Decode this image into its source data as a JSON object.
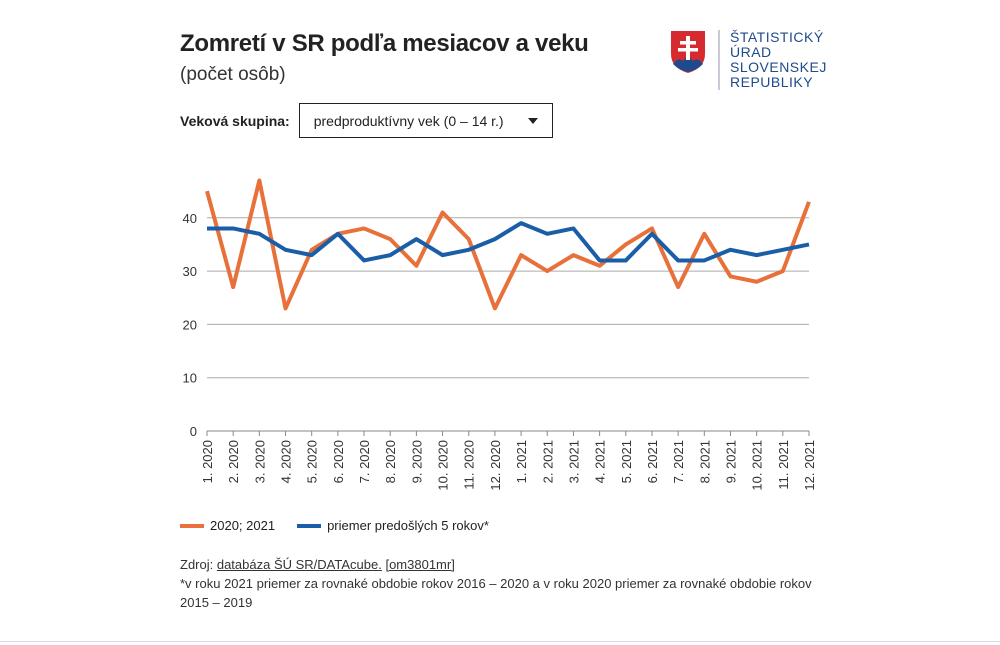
{
  "title": "Zomretí v SR podľa mesiacov a veku",
  "subtitle": "(počet osôb)",
  "logo": {
    "lines": [
      "ŠTATISTICKÝ",
      "ÚRAD",
      "SLOVENSKEJ",
      "REPUBLIKY"
    ],
    "icon": "slovak-coat-of-arms"
  },
  "filter": {
    "label": "Veková skupina:",
    "selected": "predproduktívny vek (0 – 14 r.)"
  },
  "chart_data": {
    "type": "line",
    "title": "Zomretí v SR podľa mesiacov a veku",
    "subtitle": "(počet osôb)",
    "categories": [
      "1. 2020",
      "2. 2020",
      "3. 2020",
      "4. 2020",
      "5. 2020",
      "6. 2020",
      "7. 2020",
      "8. 2020",
      "9. 2020",
      "10. 2020",
      "11. 2020",
      "12. 2020",
      "1. 2021",
      "2. 2021",
      "3. 2021",
      "4. 2021",
      "5. 2021",
      "6. 2021",
      "7. 2021",
      "8. 2021",
      "9. 2021",
      "10. 2021",
      "11. 2021",
      "12. 2021"
    ],
    "yticks": [
      0,
      10,
      20,
      30,
      40
    ],
    "ylim": [
      0,
      47
    ],
    "grid": true,
    "legend_position": "bottom-left",
    "series": [
      {
        "name": "2020; 2021",
        "color": "#e8703a",
        "values": [
          45,
          27,
          47,
          23,
          34,
          37,
          38,
          36,
          31,
          41,
          36,
          23,
          33,
          30,
          33,
          31,
          35,
          38,
          27,
          37,
          29,
          28,
          30,
          43
        ]
      },
      {
        "name": "priemer predošlých 5 rokov*",
        "color": "#1a5ea8",
        "values": [
          38,
          38,
          37,
          34,
          33,
          37,
          32,
          33,
          36,
          33,
          34,
          36,
          39,
          37,
          38,
          32,
          32,
          37,
          32,
          32,
          34,
          33,
          34,
          35
        ]
      }
    ]
  },
  "source": {
    "prefix": "Zdroj: ",
    "link": "databáza ŠÚ SR/DATAcube.",
    "code": "[om3801mr]",
    "note": "*v roku 2021 priemer za rovnaké obdobie rokov 2016 – 2020 a v roku 2020 priemer za rovnaké obdobie rokov 2015 – 2019"
  }
}
